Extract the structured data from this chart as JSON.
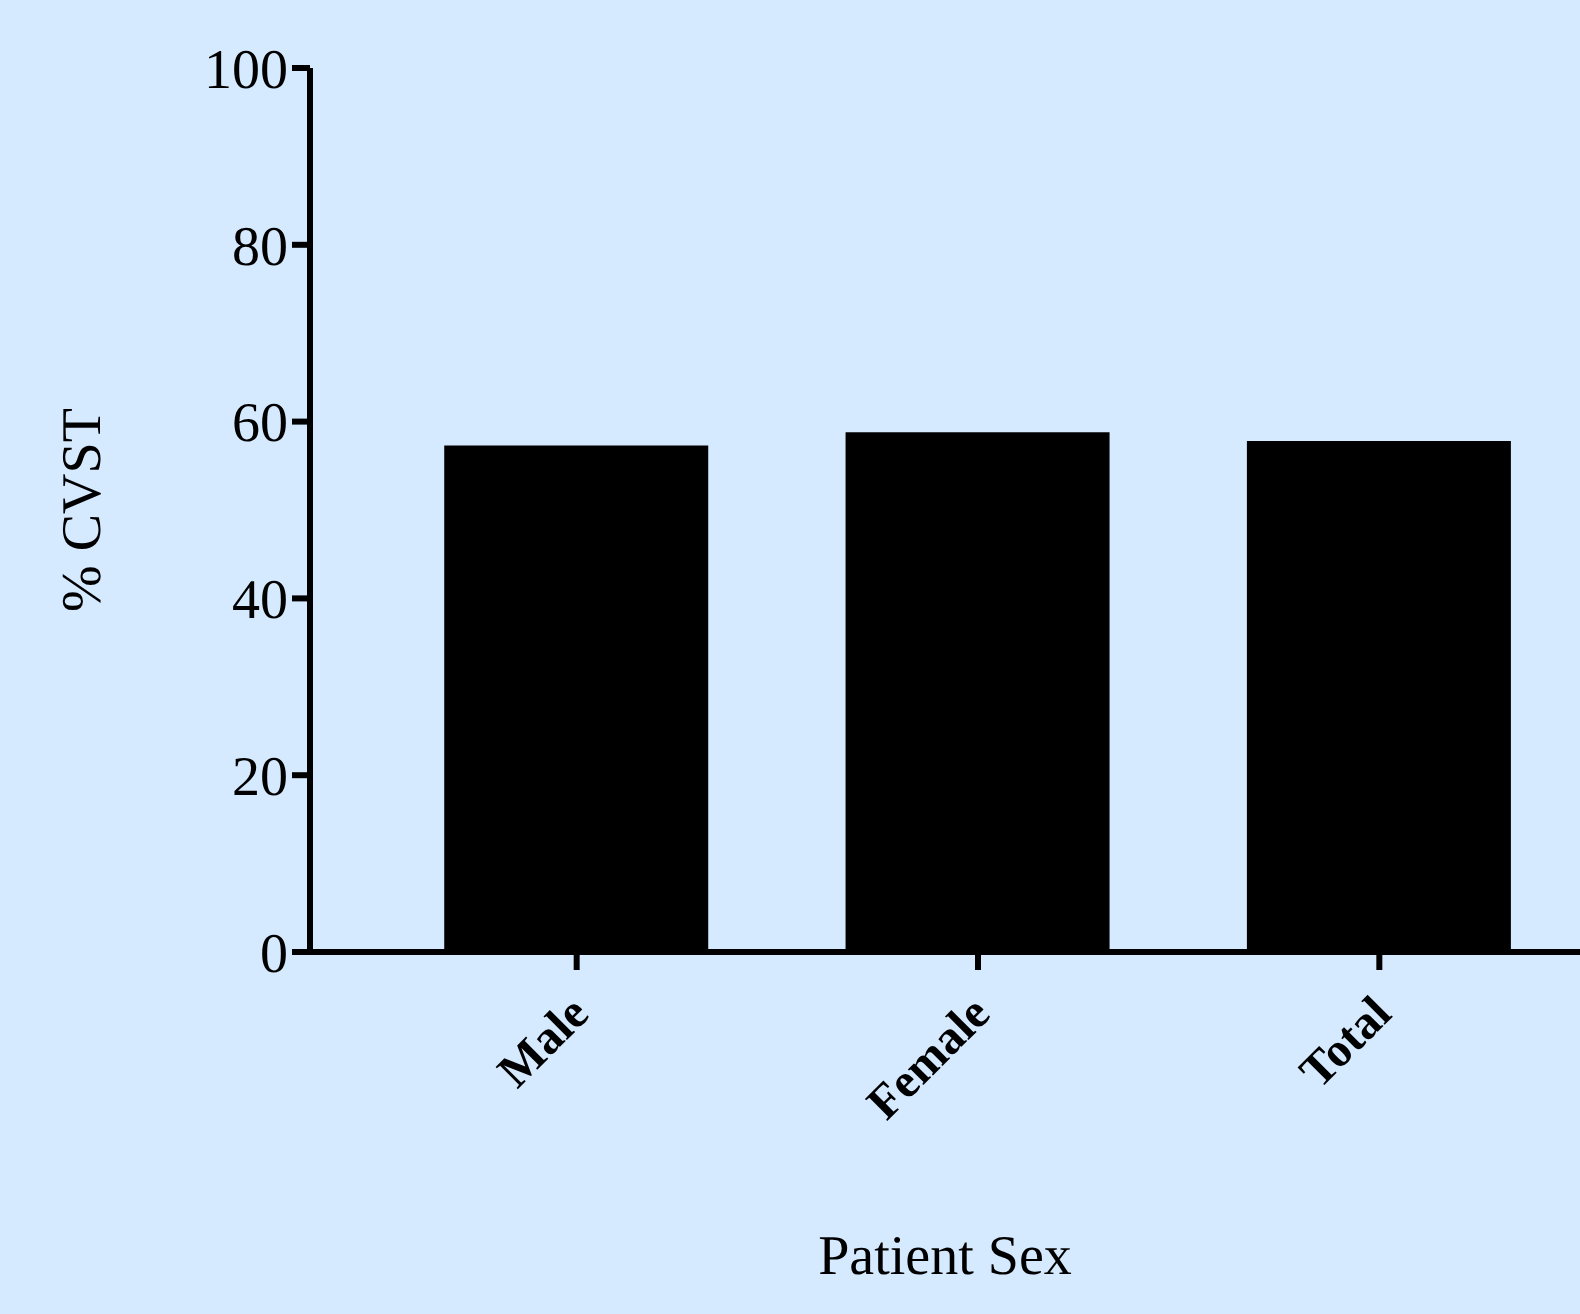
{
  "chart_data": {
    "type": "bar",
    "xlabel": "Patient Sex",
    "ylabel": "% CVST",
    "categories": [
      "Male",
      "Female",
      "Total"
    ],
    "values": [
      57.3,
      58.8,
      57.8
    ],
    "color": "#000000",
    "ylim": [
      0,
      100
    ],
    "yticks": [
      0,
      20,
      40,
      60,
      80,
      100
    ],
    "grid": false,
    "legend": false
  }
}
